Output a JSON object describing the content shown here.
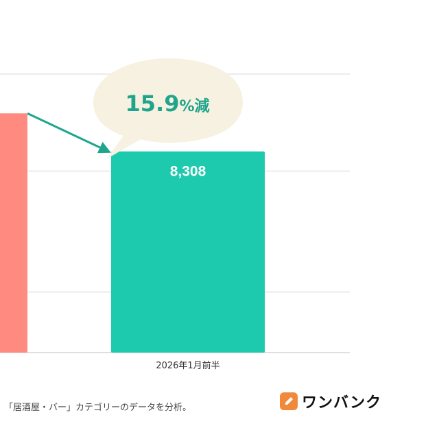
{
  "chart_data": {
    "type": "bar",
    "categories": [
      "",
      "2026年1月前半"
    ],
    "values": [
      9879,
      8308
    ],
    "data_labels": [
      "",
      "8,308"
    ],
    "ylim": [
      0,
      11500
    ],
    "gridlines": [
      2500,
      7500,
      11500
    ],
    "colors": [
      "#ff8a80",
      "#1dcaad"
    ],
    "annotation": {
      "value": "15.9",
      "unit": "%減",
      "color": "#1fa58c",
      "bubble_color": "#f6f1e1"
    },
    "arrow_color": "#1fa58c"
  },
  "footnote": "「居酒屋・バー」カテゴリーのデータを分析。",
  "logo": {
    "text": "ワンバンク",
    "icon": "pencil-icon"
  }
}
